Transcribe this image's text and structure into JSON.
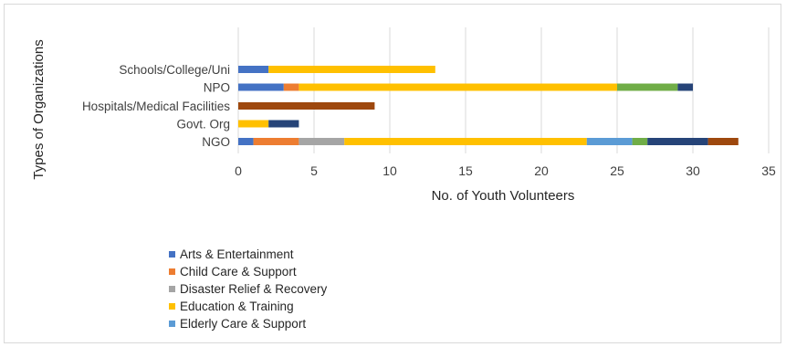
{
  "chart_data": {
    "type": "bar",
    "orientation": "horizontal",
    "stacked": true,
    "title": "",
    "xlabel": "No. of Youth Volunteers",
    "ylabel": "Types of Organizations",
    "xlim": [
      0,
      35
    ],
    "xticks": [
      "0",
      "5",
      "10",
      "15",
      "20",
      "25",
      "30",
      "35"
    ],
    "grid": true,
    "legend_position": "bottom-left",
    "categories": [
      "Schools/College/Uni",
      "NPO",
      "Hospitals/Medical Facilities",
      "Govt. Org",
      "NGO"
    ],
    "series": [
      {
        "name": "Arts & Entertainment",
        "color": "#4472C4",
        "values": [
          2,
          3,
          0,
          0,
          1
        ]
      },
      {
        "name": "Child Care & Support",
        "color": "#ED7D31",
        "values": [
          0,
          1,
          0,
          0,
          3
        ]
      },
      {
        "name": "Disaster Relief & Recovery",
        "color": "#A5A5A5",
        "values": [
          0,
          0,
          0,
          0,
          3
        ]
      },
      {
        "name": "Education & Training",
        "color": "#FFC000",
        "values": [
          11,
          21,
          0,
          2,
          16
        ]
      },
      {
        "name": "Elderly Care & Support",
        "color": "#5B9BD5",
        "values": [
          0,
          0,
          0,
          0,
          3
        ]
      },
      {
        "name": "",
        "color": "#70AD47",
        "values": [
          0,
          4,
          0,
          0,
          1
        ]
      },
      {
        "name": "",
        "color": "#264478",
        "values": [
          0,
          1,
          0,
          2,
          4
        ]
      },
      {
        "name": "",
        "color": "#9E480E",
        "values": [
          0,
          0,
          9,
          0,
          2
        ]
      }
    ]
  }
}
